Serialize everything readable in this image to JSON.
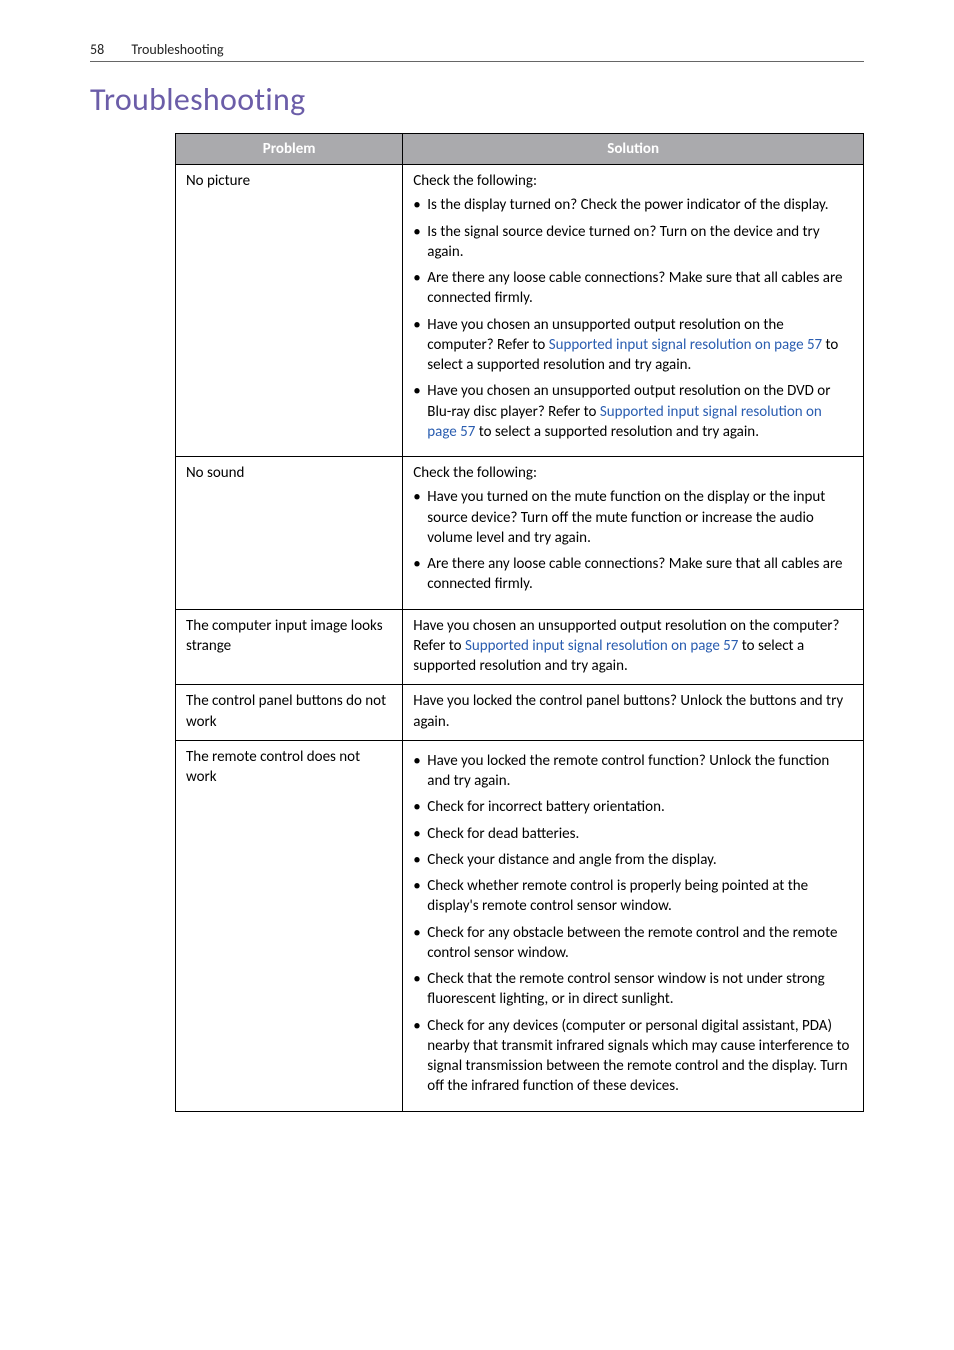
{
  "header": {
    "page_number": "58",
    "section": "Troubleshooting"
  },
  "title": "Troubleshooting",
  "table": {
    "headers": {
      "problem": "Problem",
      "solution": "Solution"
    },
    "rows": [
      {
        "problem": "No picture",
        "lead": "Check the following:",
        "items": [
          {
            "pre": "Is the display turned on? Check the power indicator of the display."
          },
          {
            "pre": "Is the signal source device turned on? Turn on the device and try again."
          },
          {
            "pre": "Are there any loose cable connections? Make sure that all cables are connected firmly."
          },
          {
            "pre": "Have you chosen an unsupported output resolution on the computer? Refer to ",
            "link": "Supported input signal resolution on page 57",
            "post": " to select a supported resolution and try again."
          },
          {
            "pre": "Have you chosen an unsupported output resolution on the DVD or Blu-ray disc player? Refer to ",
            "link": "Supported input signal resolution on page 57",
            "post": " to select a supported resolution and try again."
          }
        ]
      },
      {
        "problem": "No sound",
        "lead": "Check the following:",
        "items": [
          {
            "pre": "Have you turned on the mute function on the display or the input source device? Turn off the mute function or increase the audio volume level and try again."
          },
          {
            "pre": "Are there any loose cable connections? Make sure that all cables are connected firmly."
          }
        ]
      },
      {
        "problem": "The computer input image looks strange",
        "plain_pre": "Have you chosen an unsupported output resolution on the computer? Refer to ",
        "plain_link": "Supported input signal resolution on page 57",
        "plain_post": " to select a supported resolution and try again."
      },
      {
        "problem": "The control panel buttons do not work",
        "plain_pre": "Have you locked the control panel buttons? Unlock the buttons and try again."
      },
      {
        "problem": "The remote control does not work",
        "items": [
          {
            "pre": "Have you locked the remote control function? Unlock the function and try again."
          },
          {
            "pre": "Check for incorrect battery orientation."
          },
          {
            "pre": "Check for dead batteries."
          },
          {
            "pre": "Check your distance and angle from the display."
          },
          {
            "pre": "Check whether remote control is properly being pointed at the display's remote control sensor window."
          },
          {
            "pre": "Check for any obstacle between the remote control and the remote control sensor window."
          },
          {
            "pre": "Check that the remote control sensor window is not under strong fluorescent lighting, or in direct sunlight."
          },
          {
            "pre": "Check for any devices (computer or personal digital assistant, PDA) nearby that transmit infrared signals which may cause interference to signal transmission between the remote control and the display. Turn off the infrared function of these devices."
          }
        ]
      }
    ]
  }
}
